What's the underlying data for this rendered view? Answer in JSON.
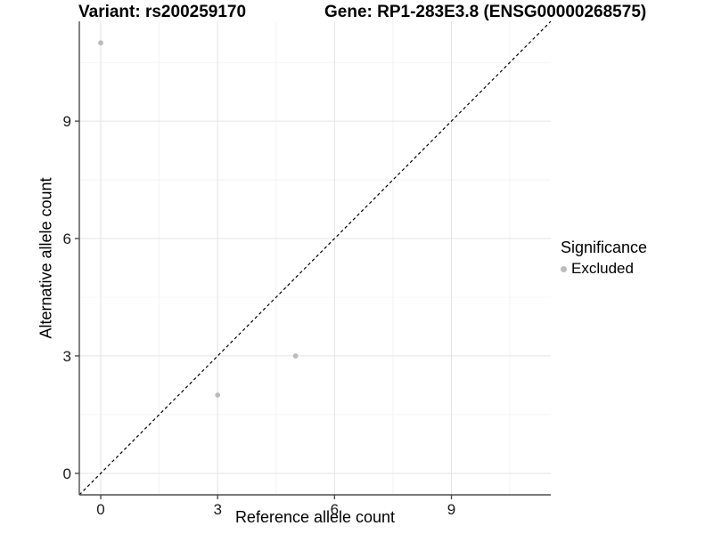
{
  "titles": {
    "variant": "Variant: rs200259170",
    "gene": "Gene: RP1-283E3.8 (ENSG00000268575)"
  },
  "legend": {
    "title": "Significance",
    "items": [
      {
        "label": "Excluded",
        "color": "#bcbcbc"
      }
    ]
  },
  "colors": {
    "background": "#ffffff",
    "point": "#bcbcbc",
    "grid_major": "#e4e4e4",
    "grid_minor": "#f1f1f1",
    "axis_line": "#4d4d4d",
    "identity_line": "#000000",
    "tick_text": "#1a1a1a"
  },
  "chart_data": {
    "type": "scatter",
    "xlabel": "Reference allele count",
    "ylabel": "Alternative allele count",
    "xlim": [
      -0.55,
      11.55
    ],
    "ylim": [
      -0.55,
      11.55
    ],
    "x_ticks": [
      0,
      3,
      6,
      9
    ],
    "y_ticks": [
      0,
      3,
      6,
      9
    ],
    "x_minor_ticks": [
      1.5,
      4.5,
      7.5,
      10.5
    ],
    "y_minor_ticks": [
      1.5,
      4.5,
      7.5,
      10.5
    ],
    "grid": true,
    "legend_position": "right",
    "series": [
      {
        "name": "Excluded",
        "color": "#bcbcbc",
        "points": [
          [
            0,
            11
          ],
          [
            3,
            2
          ],
          [
            5,
            3
          ]
        ]
      }
    ],
    "identity_line": {
      "style": "dashed",
      "slope": 1,
      "intercept": 0
    }
  }
}
